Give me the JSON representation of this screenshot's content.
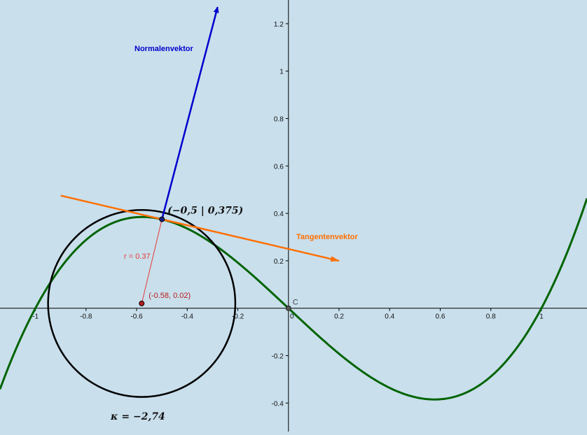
{
  "plot": {
    "x_range": [
      -1.14,
      1.18
    ],
    "y_range": [
      -0.52,
      1.3
    ],
    "x_ticks": [
      {
        "value": -1,
        "label": "-1"
      },
      {
        "value": -0.8,
        "label": "-0.8"
      },
      {
        "value": -0.6,
        "label": "-0.6"
      },
      {
        "value": -0.4,
        "label": "-0.4"
      },
      {
        "value": -0.2,
        "label": "-0.2"
      },
      {
        "value": 0,
        "label": "0"
      },
      {
        "value": 0.2,
        "label": "0.2"
      },
      {
        "value": 0.4,
        "label": "0.4"
      },
      {
        "value": 0.6,
        "label": "0.6"
      },
      {
        "value": 0.8,
        "label": "0.8"
      },
      {
        "value": 1,
        "label": "1"
      }
    ],
    "y_ticks": [
      {
        "value": -0.4,
        "label": "-0.4"
      },
      {
        "value": -0.2,
        "label": "-0.2"
      },
      {
        "value": 0.2,
        "label": "0.2"
      },
      {
        "value": 0.4,
        "label": "0.4"
      },
      {
        "value": 0.6,
        "label": "0.6"
      },
      {
        "value": 0.8,
        "label": "0.8"
      },
      {
        "value": 1,
        "label": "1"
      },
      {
        "value": 1.2,
        "label": "1.2"
      }
    ]
  },
  "curve": {
    "coeff_cubic": 1,
    "coeff_linear": -1,
    "color": "#006400"
  },
  "point": {
    "x": -0.5,
    "y": 0.375,
    "label": "(−0,5 | 0,375)",
    "color": "#1a237e"
  },
  "center": {
    "x": -0.58,
    "y": 0.02,
    "label": "(-0.58, 0.02)",
    "color": "#b71c1c"
  },
  "radius": {
    "label": "r = 0.37",
    "color": "#e53935"
  },
  "circle": {
    "r": 0.37,
    "color": "#000000"
  },
  "origin_point": {
    "label": "C"
  },
  "tangent_line": {
    "start_x": -0.9,
    "end_x": 0.2,
    "color": "#ff6f00"
  },
  "tangent_vector": {
    "label": "Tangentenvektor",
    "color": "#ff6f00"
  },
  "normal_vector": {
    "label": "Normalenvektor",
    "end": {
      "x": -0.28,
      "y": 1.27
    },
    "color": "#0000cc"
  },
  "curvature": {
    "label": "κ = −2,74"
  }
}
